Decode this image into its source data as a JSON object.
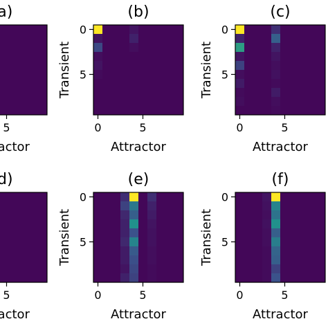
{
  "chart_data": [
    {
      "type": "heatmap",
      "panel": "(a)",
      "title": "(a)",
      "xlabel": "Attractor",
      "ylabel": "",
      "x_ticks": [
        5
      ],
      "y_ticks": [],
      "xlim": [
        -0.5,
        9.5
      ],
      "ylim": [
        9.5,
        -0.5
      ],
      "values": [
        [
          0.02,
          0.02,
          0.02,
          0.02,
          0.02,
          0.02,
          0.02,
          0.02,
          0.02,
          0.02
        ],
        [
          0.02,
          0.02,
          0.02,
          0.02,
          0.02,
          0.02,
          0.02,
          0.02,
          0.02,
          0.02
        ],
        [
          0.02,
          0.02,
          0.02,
          0.02,
          0.02,
          0.02,
          0.02,
          0.02,
          0.02,
          0.02
        ],
        [
          0.02,
          0.02,
          0.02,
          0.02,
          0.02,
          0.02,
          0.02,
          0.02,
          0.02,
          0.02
        ],
        [
          0.02,
          0.02,
          0.02,
          0.02,
          0.02,
          0.02,
          0.02,
          0.02,
          0.02,
          0.02
        ],
        [
          0.02,
          0.02,
          0.02,
          0.02,
          0.02,
          0.02,
          0.02,
          0.02,
          0.02,
          0.02
        ],
        [
          0.02,
          0.02,
          0.02,
          0.02,
          0.02,
          0.02,
          0.02,
          0.02,
          0.02,
          0.02
        ],
        [
          0.02,
          0.02,
          0.02,
          0.02,
          0.02,
          0.02,
          0.02,
          0.02,
          0.02,
          0.02
        ],
        [
          0.02,
          0.02,
          0.02,
          0.02,
          0.02,
          0.02,
          0.02,
          0.02,
          0.02,
          0.02
        ],
        [
          0.02,
          0.02,
          0.02,
          0.02,
          0.02,
          0.02,
          0.02,
          0.02,
          0.02,
          0.02
        ]
      ]
    },
    {
      "type": "heatmap",
      "panel": "(b)",
      "title": "(b)",
      "xlabel": "Attractor",
      "ylabel": "Transient",
      "x_ticks": [
        0,
        5
      ],
      "y_ticks": [
        0,
        5
      ],
      "xlim": [
        -0.5,
        9.5
      ],
      "ylim": [
        9.5,
        -0.5
      ],
      "values": [
        [
          1.0,
          0.02,
          0.02,
          0.02,
          0.06,
          0.02,
          0.02,
          0.02,
          0.02,
          0.02
        ],
        [
          0.06,
          0.02,
          0.02,
          0.02,
          0.1,
          0.02,
          0.02,
          0.02,
          0.02,
          0.02
        ],
        [
          0.22,
          0.02,
          0.02,
          0.02,
          0.04,
          0.02,
          0.02,
          0.02,
          0.02,
          0.02
        ],
        [
          0.04,
          0.02,
          0.02,
          0.02,
          0.02,
          0.02,
          0.02,
          0.02,
          0.02,
          0.02
        ],
        [
          0.06,
          0.02,
          0.02,
          0.02,
          0.02,
          0.02,
          0.02,
          0.02,
          0.02,
          0.02
        ],
        [
          0.03,
          0.02,
          0.02,
          0.02,
          0.02,
          0.02,
          0.02,
          0.02,
          0.02,
          0.02
        ],
        [
          0.02,
          0.02,
          0.02,
          0.02,
          0.02,
          0.02,
          0.02,
          0.02,
          0.02,
          0.02
        ],
        [
          0.02,
          0.02,
          0.02,
          0.02,
          0.02,
          0.02,
          0.02,
          0.02,
          0.02,
          0.02
        ],
        [
          0.02,
          0.02,
          0.02,
          0.02,
          0.02,
          0.02,
          0.02,
          0.02,
          0.02,
          0.02
        ],
        [
          0.02,
          0.02,
          0.02,
          0.02,
          0.02,
          0.02,
          0.02,
          0.02,
          0.02,
          0.02
        ]
      ]
    },
    {
      "type": "heatmap",
      "panel": "(c)",
      "title": "(c)",
      "xlabel": "Attractor",
      "ylabel": "Transient",
      "x_ticks": [
        0,
        5
      ],
      "y_ticks": [
        0,
        5
      ],
      "xlim": [
        -0.5,
        9.5
      ],
      "ylim": [
        9.5,
        -0.5
      ],
      "values": [
        [
          1.0,
          0.02,
          0.02,
          0.02,
          0.14,
          0.02,
          0.02,
          0.02,
          0.02,
          0.02
        ],
        [
          0.1,
          0.02,
          0.02,
          0.02,
          0.3,
          0.02,
          0.02,
          0.02,
          0.02,
          0.02
        ],
        [
          0.55,
          0.02,
          0.02,
          0.02,
          0.1,
          0.02,
          0.02,
          0.02,
          0.02,
          0.02
        ],
        [
          0.06,
          0.02,
          0.02,
          0.02,
          0.06,
          0.02,
          0.02,
          0.02,
          0.02,
          0.02
        ],
        [
          0.2,
          0.02,
          0.02,
          0.02,
          0.04,
          0.02,
          0.02,
          0.02,
          0.02,
          0.02
        ],
        [
          0.04,
          0.02,
          0.02,
          0.02,
          0.05,
          0.02,
          0.02,
          0.02,
          0.02,
          0.02
        ],
        [
          0.08,
          0.02,
          0.02,
          0.02,
          0.03,
          0.02,
          0.02,
          0.02,
          0.02,
          0.02
        ],
        [
          0.03,
          0.02,
          0.02,
          0.02,
          0.08,
          0.02,
          0.02,
          0.02,
          0.02,
          0.02
        ],
        [
          0.04,
          0.02,
          0.02,
          0.02,
          0.04,
          0.02,
          0.02,
          0.02,
          0.02,
          0.02
        ],
        [
          0.02,
          0.02,
          0.02,
          0.02,
          0.03,
          0.02,
          0.02,
          0.02,
          0.02,
          0.02
        ]
      ]
    },
    {
      "type": "heatmap",
      "panel": "(d)",
      "title": "(d)",
      "xlabel": "Attractor",
      "ylabel": "",
      "x_ticks": [
        5
      ],
      "y_ticks": [],
      "xlim": [
        -0.5,
        9.5
      ],
      "ylim": [
        9.5,
        -0.5
      ],
      "values": [
        [
          0.02,
          0.02,
          0.02,
          0.02,
          0.02,
          0.02,
          0.02,
          0.02,
          0.02,
          0.02
        ],
        [
          0.02,
          0.02,
          0.02,
          0.02,
          0.02,
          0.02,
          0.02,
          0.02,
          0.02,
          0.02
        ],
        [
          0.02,
          0.02,
          0.02,
          0.02,
          0.02,
          0.02,
          0.02,
          0.02,
          0.02,
          0.02
        ],
        [
          0.02,
          0.02,
          0.02,
          0.02,
          0.02,
          0.02,
          0.02,
          0.02,
          0.02,
          0.02
        ],
        [
          0.02,
          0.02,
          0.02,
          0.02,
          0.02,
          0.02,
          0.02,
          0.02,
          0.02,
          0.02
        ],
        [
          0.02,
          0.02,
          0.02,
          0.02,
          0.02,
          0.02,
          0.02,
          0.02,
          0.02,
          0.02
        ],
        [
          0.02,
          0.02,
          0.02,
          0.02,
          0.02,
          0.02,
          0.02,
          0.02,
          0.02,
          0.02
        ],
        [
          0.02,
          0.02,
          0.02,
          0.02,
          0.02,
          0.02,
          0.02,
          0.02,
          0.02,
          0.02
        ],
        [
          0.02,
          0.02,
          0.02,
          0.02,
          0.02,
          0.02,
          0.02,
          0.02,
          0.02,
          0.02
        ],
        [
          0.02,
          0.02,
          0.02,
          0.02,
          0.02,
          0.02,
          0.02,
          0.02,
          0.02,
          0.02
        ]
      ]
    },
    {
      "type": "heatmap",
      "panel": "(e)",
      "title": "(e)",
      "xlabel": "Attractor",
      "ylabel": "Transient",
      "x_ticks": [
        0,
        5
      ],
      "y_ticks": [
        0,
        5
      ],
      "xlim": [
        -0.5,
        9.5
      ],
      "ylim": [
        9.5,
        -0.5
      ],
      "values": [
        [
          0.02,
          0.02,
          0.02,
          0.14,
          1.0,
          0.02,
          0.14,
          0.02,
          0.02,
          0.02
        ],
        [
          0.02,
          0.02,
          0.02,
          0.2,
          0.4,
          0.02,
          0.1,
          0.02,
          0.02,
          0.02
        ],
        [
          0.02,
          0.02,
          0.02,
          0.12,
          0.3,
          0.02,
          0.08,
          0.02,
          0.02,
          0.02
        ],
        [
          0.02,
          0.02,
          0.02,
          0.1,
          0.5,
          0.02,
          0.06,
          0.02,
          0.02,
          0.02
        ],
        [
          0.02,
          0.02,
          0.02,
          0.1,
          0.25,
          0.02,
          0.05,
          0.02,
          0.02,
          0.02
        ],
        [
          0.02,
          0.02,
          0.02,
          0.12,
          0.45,
          0.02,
          0.05,
          0.02,
          0.02,
          0.02
        ],
        [
          0.02,
          0.02,
          0.02,
          0.08,
          0.28,
          0.02,
          0.04,
          0.02,
          0.02,
          0.02
        ],
        [
          0.02,
          0.02,
          0.02,
          0.08,
          0.24,
          0.02,
          0.04,
          0.02,
          0.02,
          0.02
        ],
        [
          0.02,
          0.02,
          0.02,
          0.06,
          0.22,
          0.02,
          0.03,
          0.02,
          0.02,
          0.02
        ],
        [
          0.02,
          0.02,
          0.02,
          0.1,
          0.2,
          0.02,
          0.03,
          0.02,
          0.02,
          0.02
        ]
      ]
    },
    {
      "type": "heatmap",
      "panel": "(f)",
      "title": "(f)",
      "xlabel": "Attractor",
      "ylabel": "Transient",
      "x_ticks": [
        0,
        5
      ],
      "y_ticks": [
        0,
        5
      ],
      "xlim": [
        -0.5,
        9.5
      ],
      "ylim": [
        9.5,
        -0.5
      ],
      "values": [
        [
          0.02,
          0.02,
          0.02,
          0.06,
          1.0,
          0.02,
          0.02,
          0.02,
          0.02,
          0.02
        ],
        [
          0.02,
          0.02,
          0.02,
          0.05,
          0.45,
          0.02,
          0.02,
          0.02,
          0.02,
          0.02
        ],
        [
          0.02,
          0.02,
          0.02,
          0.04,
          0.38,
          0.02,
          0.02,
          0.02,
          0.02,
          0.02
        ],
        [
          0.02,
          0.02,
          0.02,
          0.05,
          0.5,
          0.02,
          0.02,
          0.02,
          0.02,
          0.02
        ],
        [
          0.02,
          0.02,
          0.02,
          0.04,
          0.3,
          0.02,
          0.02,
          0.02,
          0.02,
          0.02
        ],
        [
          0.02,
          0.02,
          0.02,
          0.04,
          0.42,
          0.02,
          0.02,
          0.02,
          0.02,
          0.02
        ],
        [
          0.02,
          0.02,
          0.02,
          0.03,
          0.32,
          0.02,
          0.02,
          0.02,
          0.02,
          0.02
        ],
        [
          0.02,
          0.02,
          0.02,
          0.03,
          0.3,
          0.02,
          0.02,
          0.02,
          0.02,
          0.02
        ],
        [
          0.02,
          0.02,
          0.02,
          0.03,
          0.2,
          0.02,
          0.02,
          0.02,
          0.02,
          0.02
        ],
        [
          0.02,
          0.02,
          0.02,
          0.03,
          0.25,
          0.02,
          0.02,
          0.02,
          0.02,
          0.02
        ]
      ]
    }
  ],
  "colormap": [
    "#440154",
    "#3b528b",
    "#21918c",
    "#5ec962",
    "#fde725"
  ]
}
